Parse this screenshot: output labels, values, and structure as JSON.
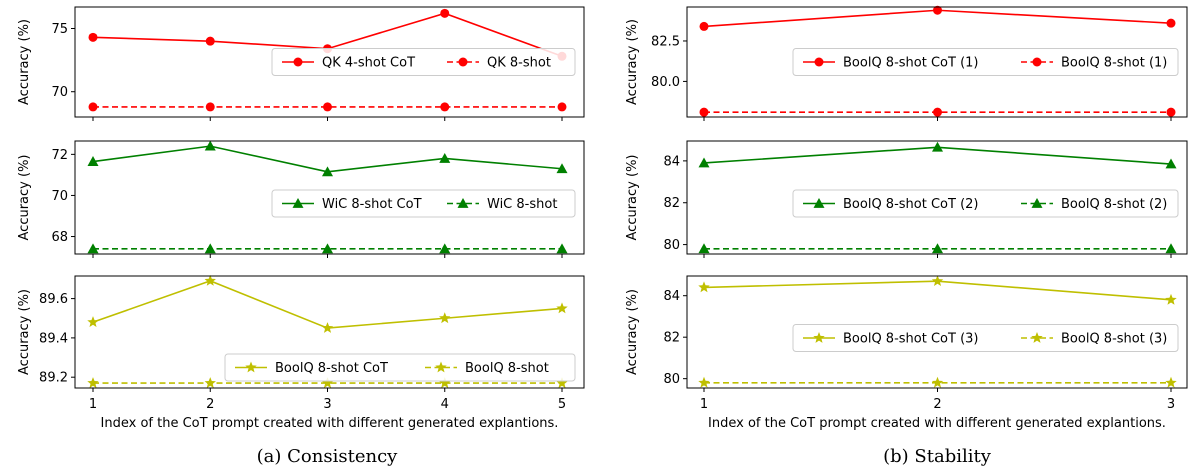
{
  "captions": [
    "(a) Consistency",
    "(b) Stability"
  ],
  "colors": {
    "red": "#ff0000",
    "green": "#008000",
    "yellow": "#bfbf00"
  },
  "chart_data": [
    {
      "type": "line",
      "panel": "a",
      "row": 0,
      "x": [
        1,
        2,
        3,
        4,
        5
      ],
      "ylabel": "Accuracy (%)",
      "xlabel": "",
      "ylim": [
        68.0,
        76.7
      ],
      "yticks": [
        70,
        75
      ],
      "yticklabels": [
        "70",
        "75"
      ],
      "show_xticklabels": false,
      "legend": "center-right",
      "color": "#ff0000",
      "marker": "circle",
      "series": [
        {
          "name": "QK 4-shot CoT",
          "values": [
            74.3,
            74.0,
            73.4,
            76.2,
            72.8
          ],
          "dashed": false
        },
        {
          "name": "QK 8-shot",
          "values": [
            68.8,
            68.8,
            68.8,
            68.8,
            68.8
          ],
          "dashed": true
        }
      ]
    },
    {
      "type": "line",
      "panel": "a",
      "row": 1,
      "x": [
        1,
        2,
        3,
        4,
        5
      ],
      "ylabel": "Accuracy (%)",
      "xlabel": "",
      "ylim": [
        67.15,
        72.65
      ],
      "yticks": [
        68,
        70,
        72
      ],
      "yticklabels": [
        "68",
        "70",
        "72"
      ],
      "show_xticklabels": false,
      "legend": "center-right",
      "color": "#008000",
      "marker": "triangle",
      "series": [
        {
          "name": "WiC 8-shot CoT",
          "values": [
            71.65,
            72.4,
            71.15,
            71.8,
            71.3
          ],
          "dashed": false
        },
        {
          "name": "WiC 8-shot",
          "values": [
            67.4,
            67.4,
            67.4,
            67.4,
            67.4
          ],
          "dashed": true
        }
      ]
    },
    {
      "type": "line",
      "panel": "a",
      "row": 2,
      "x": [
        1,
        2,
        3,
        4,
        5
      ],
      "ylabel": "Accuracy (%)",
      "xlabel": "Index of the CoT prompt created with different generated explantions.",
      "ylim": [
        89.145,
        89.715
      ],
      "yticks": [
        89.2,
        89.4,
        89.6
      ],
      "yticklabels": [
        "89.2",
        "89.4",
        "89.6"
      ],
      "xticks": [
        1,
        2,
        3,
        4,
        5
      ],
      "xticklabels": [
        "1",
        "2",
        "3",
        "4",
        "5"
      ],
      "show_xticklabels": true,
      "legend": "lower-right",
      "color": "#bfbf00",
      "marker": "star",
      "series": [
        {
          "name": "BoolQ 8-shot CoT",
          "values": [
            89.48,
            89.69,
            89.45,
            89.5,
            89.55
          ],
          "dashed": false
        },
        {
          "name": "BoolQ 8-shot",
          "values": [
            89.17,
            89.17,
            89.17,
            89.17,
            89.17
          ],
          "dashed": true
        }
      ]
    },
    {
      "type": "line",
      "panel": "b",
      "row": 0,
      "x": [
        1,
        2,
        3
      ],
      "ylabel": "Accuracy (%)",
      "xlabel": "",
      "ylim": [
        77.8,
        84.6
      ],
      "yticks": [
        80.0,
        82.5
      ],
      "yticklabels": [
        "80.0",
        "82.5"
      ],
      "show_xticklabels": false,
      "legend": "center-right",
      "color": "#ff0000",
      "marker": "circle",
      "series": [
        {
          "name": "BoolQ 8-shot CoT (1)",
          "values": [
            83.4,
            84.4,
            83.6
          ],
          "dashed": false
        },
        {
          "name": "BoolQ 8-shot (1)",
          "values": [
            78.1,
            78.1,
            78.1
          ],
          "dashed": true
        }
      ]
    },
    {
      "type": "line",
      "panel": "b",
      "row": 1,
      "x": [
        1,
        2,
        3
      ],
      "ylabel": "Accuracy (%)",
      "xlabel": "",
      "ylim": [
        79.55,
        84.95
      ],
      "yticks": [
        80,
        82,
        84
      ],
      "yticklabels": [
        "80",
        "82",
        "84"
      ],
      "show_xticklabels": false,
      "legend": "center-right",
      "color": "#008000",
      "marker": "triangle",
      "series": [
        {
          "name": "BoolQ 8-shot CoT (2)",
          "values": [
            83.9,
            84.65,
            83.85
          ],
          "dashed": false
        },
        {
          "name": "BoolQ 8-shot (2)",
          "values": [
            79.8,
            79.8,
            79.8
          ],
          "dashed": true
        }
      ]
    },
    {
      "type": "line",
      "panel": "b",
      "row": 2,
      "x": [
        1,
        2,
        3
      ],
      "ylabel": "Accuracy (%)",
      "xlabel": "Index of the CoT prompt created with different generated explantions.",
      "ylim": [
        79.55,
        84.95
      ],
      "yticks": [
        80,
        82,
        84
      ],
      "yticklabels": [
        "80",
        "82",
        "84"
      ],
      "xticks": [
        1,
        2,
        3
      ],
      "xticklabels": [
        "1",
        "2",
        "3"
      ],
      "show_xticklabels": true,
      "legend": "center-right",
      "color": "#bfbf00",
      "marker": "star",
      "series": [
        {
          "name": "BoolQ 8-shot CoT (3)",
          "values": [
            84.4,
            84.7,
            83.8
          ],
          "dashed": false
        },
        {
          "name": "BoolQ 8-shot (3)",
          "values": [
            79.8,
            79.8,
            79.8
          ],
          "dashed": true
        }
      ]
    }
  ]
}
